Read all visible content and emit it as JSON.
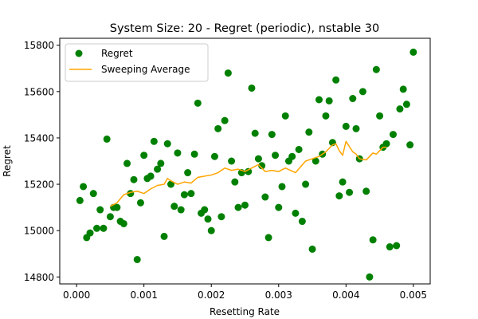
{
  "chart_data": {
    "type": "scatter",
    "title": "System Size: 20 - Regret (periodic), nstable 30",
    "xlabel": "Resetting Rate",
    "ylabel": "Regret",
    "xlim": [
      -0.00025,
      0.00525
    ],
    "ylim": [
      14770,
      15830
    ],
    "xticks": [
      0.0,
      0.001,
      0.002,
      0.003,
      0.004,
      0.005
    ],
    "xtick_labels": [
      "0.000",
      "0.001",
      "0.002",
      "0.003",
      "0.004",
      "0.005"
    ],
    "yticks": [
      14800,
      15000,
      15200,
      15400,
      15600,
      15800
    ],
    "ytick_labels": [
      "14800",
      "15000",
      "15200",
      "15400",
      "15600",
      "15800"
    ],
    "grid": false,
    "legend_position": "top-left",
    "colors": {
      "scatter": "#008000",
      "line": "#ffa500"
    },
    "series": [
      {
        "name": "Regret",
        "kind": "scatter",
        "points": [
          [
            5e-05,
            15130
          ],
          [
            0.0001,
            15190
          ],
          [
            0.00015,
            14970
          ],
          [
            0.0002,
            14990
          ],
          [
            0.00025,
            15160
          ],
          [
            0.0003,
            15010
          ],
          [
            0.00035,
            15090
          ],
          [
            0.0004,
            15010
          ],
          [
            0.00045,
            15395
          ],
          [
            0.0005,
            15060
          ],
          [
            0.00055,
            15100
          ],
          [
            0.0006,
            15100
          ],
          [
            0.00065,
            15040
          ],
          [
            0.0007,
            15030
          ],
          [
            0.00075,
            15290
          ],
          [
            0.0008,
            15160
          ],
          [
            0.00085,
            15220
          ],
          [
            0.0009,
            14875
          ],
          [
            0.00095,
            15120
          ],
          [
            0.001,
            15325
          ],
          [
            0.00105,
            15225
          ],
          [
            0.0011,
            15235
          ],
          [
            0.00115,
            15385
          ],
          [
            0.0012,
            15265
          ],
          [
            0.00125,
            15290
          ],
          [
            0.0013,
            14975
          ],
          [
            0.00135,
            15375
          ],
          [
            0.0014,
            15200
          ],
          [
            0.00145,
            15105
          ],
          [
            0.0015,
            15335
          ],
          [
            0.00155,
            15090
          ],
          [
            0.0016,
            15155
          ],
          [
            0.00165,
            15250
          ],
          [
            0.0017,
            15160
          ],
          [
            0.00175,
            15330
          ],
          [
            0.0018,
            15550
          ],
          [
            0.00185,
            15075
          ],
          [
            0.0019,
            15090
          ],
          [
            0.00195,
            15050
          ],
          [
            0.002,
            15000
          ],
          [
            0.00205,
            15320
          ],
          [
            0.0021,
            15440
          ],
          [
            0.00215,
            15060
          ],
          [
            0.0022,
            15475
          ],
          [
            0.00225,
            15680
          ],
          [
            0.0023,
            15300
          ],
          [
            0.00235,
            15210
          ],
          [
            0.0024,
            15100
          ],
          [
            0.00245,
            15250
          ],
          [
            0.0025,
            15110
          ],
          [
            0.00255,
            15255
          ],
          [
            0.0026,
            15615
          ],
          [
            0.00265,
            15420
          ],
          [
            0.0027,
            15310
          ],
          [
            0.00275,
            15280
          ],
          [
            0.0028,
            15145
          ],
          [
            0.00285,
            14970
          ],
          [
            0.0029,
            15415
          ],
          [
            0.00295,
            15325
          ],
          [
            0.003,
            15100
          ],
          [
            0.00305,
            15190
          ],
          [
            0.0031,
            15495
          ],
          [
            0.00315,
            15300
          ],
          [
            0.0032,
            15320
          ],
          [
            0.00325,
            15075
          ],
          [
            0.0033,
            15350
          ],
          [
            0.00335,
            15040
          ],
          [
            0.0034,
            15200
          ],
          [
            0.00345,
            15425
          ],
          [
            0.0035,
            14920
          ],
          [
            0.00355,
            15300
          ],
          [
            0.0036,
            15565
          ],
          [
            0.00365,
            15330
          ],
          [
            0.0037,
            15495
          ],
          [
            0.00375,
            15560
          ],
          [
            0.0038,
            15380
          ],
          [
            0.00385,
            15650
          ],
          [
            0.0039,
            15150
          ],
          [
            0.00395,
            15210
          ],
          [
            0.004,
            15450
          ],
          [
            0.00405,
            15165
          ],
          [
            0.0041,
            15570
          ],
          [
            0.00415,
            15440
          ],
          [
            0.0042,
            15310
          ],
          [
            0.00425,
            15600
          ],
          [
            0.0043,
            15170
          ],
          [
            0.00435,
            14800
          ],
          [
            0.0044,
            14960
          ],
          [
            0.00445,
            15695
          ],
          [
            0.0045,
            15495
          ],
          [
            0.00455,
            15360
          ],
          [
            0.0046,
            15375
          ],
          [
            0.00465,
            14930
          ],
          [
            0.0047,
            15415
          ],
          [
            0.00475,
            14935
          ],
          [
            0.0048,
            15525
          ],
          [
            0.00485,
            15610
          ],
          [
            0.0049,
            15545
          ],
          [
            0.00495,
            15370
          ],
          [
            0.005,
            15770
          ]
        ]
      },
      {
        "name": "Sweeping Average",
        "kind": "line",
        "points": [
          [
            0.0005,
            15105
          ],
          [
            0.0006,
            15120
          ],
          [
            0.0007,
            15155
          ],
          [
            0.0008,
            15165
          ],
          [
            0.0009,
            15170
          ],
          [
            0.001,
            15160
          ],
          [
            0.0011,
            15180
          ],
          [
            0.0012,
            15195
          ],
          [
            0.0013,
            15200
          ],
          [
            0.00135,
            15225
          ],
          [
            0.0014,
            15215
          ],
          [
            0.0015,
            15200
          ],
          [
            0.0016,
            15210
          ],
          [
            0.0017,
            15205
          ],
          [
            0.0018,
            15230
          ],
          [
            0.0019,
            15235
          ],
          [
            0.002,
            15240
          ],
          [
            0.0021,
            15250
          ],
          [
            0.0022,
            15270
          ],
          [
            0.0023,
            15260
          ],
          [
            0.0024,
            15265
          ],
          [
            0.0025,
            15255
          ],
          [
            0.0026,
            15270
          ],
          [
            0.0027,
            15285
          ],
          [
            0.0028,
            15255
          ],
          [
            0.0029,
            15260
          ],
          [
            0.003,
            15255
          ],
          [
            0.0031,
            15270
          ],
          [
            0.00325,
            15250
          ],
          [
            0.0034,
            15300
          ],
          [
            0.0035,
            15310
          ],
          [
            0.0036,
            15320
          ],
          [
            0.0037,
            15340
          ],
          [
            0.0038,
            15370
          ],
          [
            0.00385,
            15375
          ],
          [
            0.0039,
            15345
          ],
          [
            0.00395,
            15325
          ],
          [
            0.004,
            15385
          ],
          [
            0.0041,
            15340
          ],
          [
            0.00415,
            15330
          ],
          [
            0.0042,
            15310
          ],
          [
            0.0043,
            15305
          ],
          [
            0.0044,
            15335
          ],
          [
            0.00445,
            15330
          ],
          [
            0.0045,
            15345
          ],
          [
            0.00455,
            15360
          ],
          [
            0.0046,
            15360
          ]
        ]
      }
    ]
  }
}
